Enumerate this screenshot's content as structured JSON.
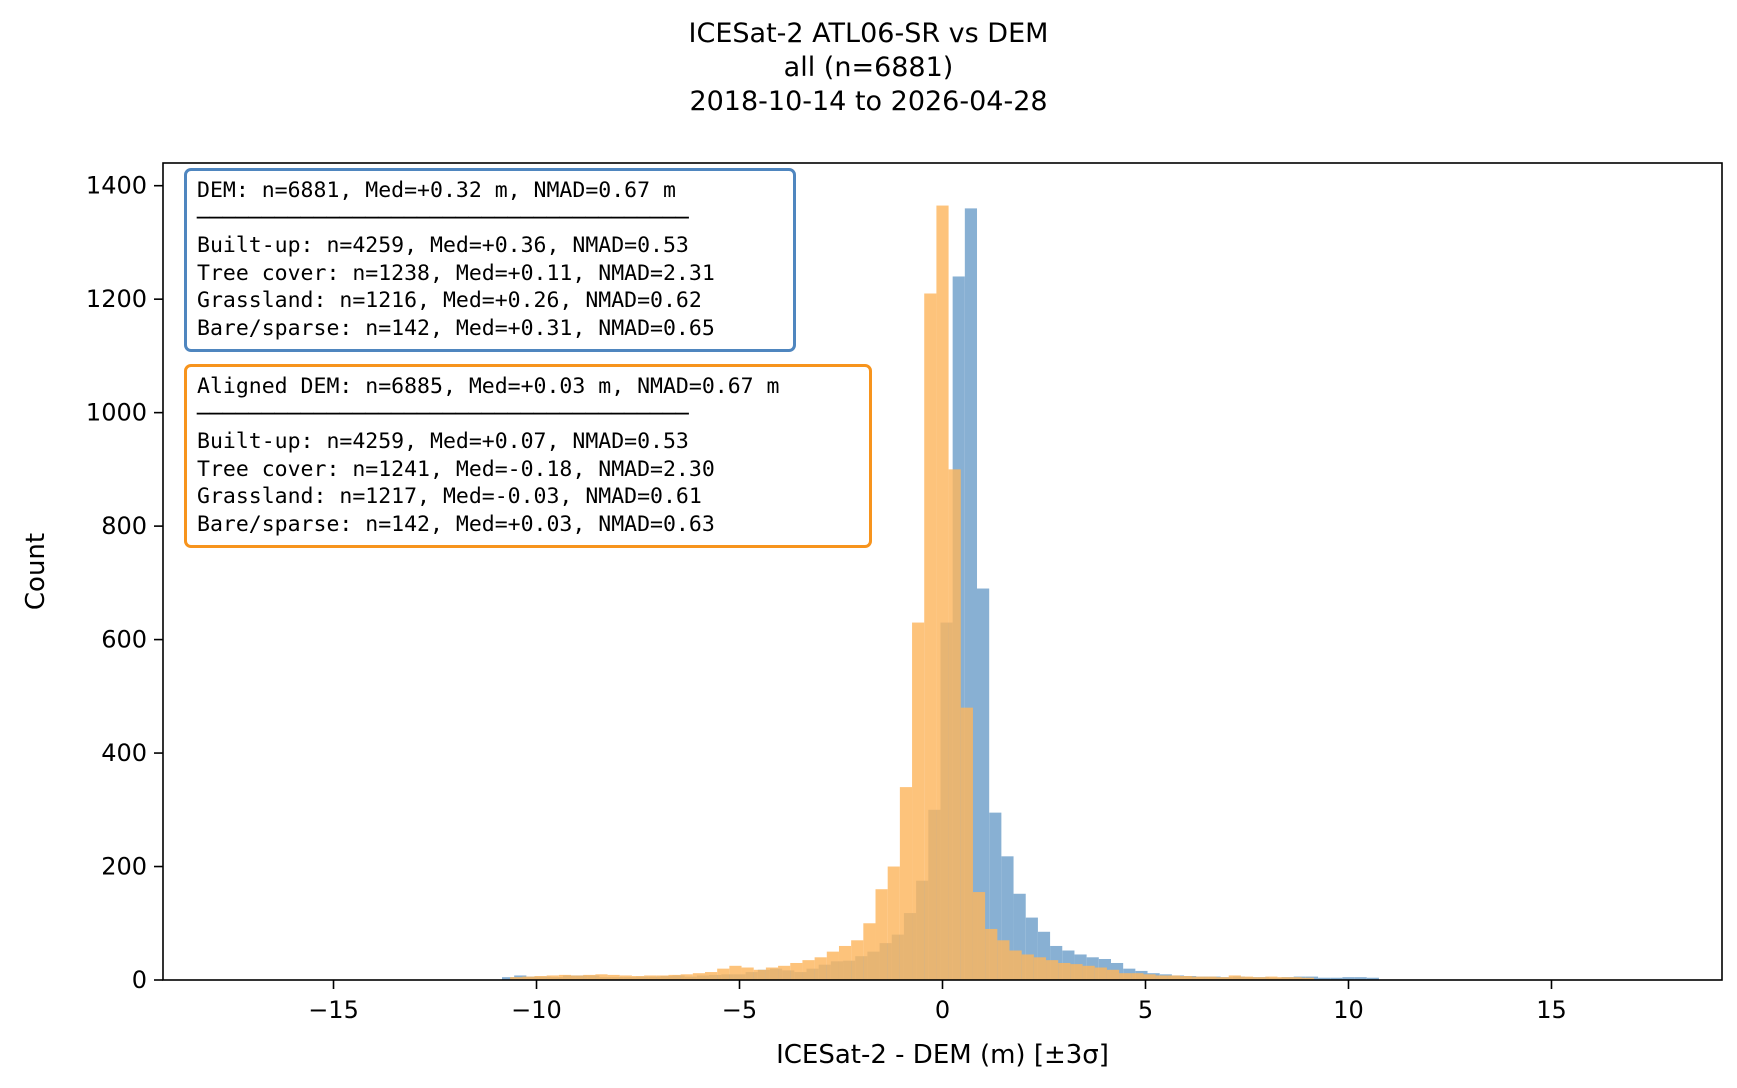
{
  "title": {
    "line1": "ICESat-2 ATL06-SR vs DEM",
    "line2": "all (n=6881)",
    "line3": "2018-10-14 to 2026-04-28"
  },
  "colors": {
    "dem": "#4f86bf",
    "aligned": "#f7941d",
    "dem_fill": "#88b0d3",
    "aligned_fill": "#fdb65e"
  },
  "box_dem": {
    "header": "DEM: n=6881, Med=+0.32 m, NMAD=0.67 m",
    "separator": "──────────────────────────────────────",
    "rows": [
      "Built-up: n=4259, Med=+0.36, NMAD=0.53",
      "Tree cover: n=1238, Med=+0.11, NMAD=2.31",
      "Grassland: n=1216, Med=+0.26, NMAD=0.62",
      "Bare/sparse: n=142, Med=+0.31, NMAD=0.65"
    ]
  },
  "box_aligned": {
    "header": "Aligned DEM: n=6885, Med=+0.03 m, NMAD=0.67 m",
    "separator": "──────────────────────────────────────",
    "rows": [
      "Built-up: n=4259, Med=+0.07, NMAD=0.53",
      "Tree cover: n=1241, Med=-0.18, NMAD=2.30",
      "Grassland: n=1217, Med=-0.03, NMAD=0.61",
      "Bare/sparse: n=142, Med=+0.03, NMAD=0.63"
    ]
  },
  "chart_data": {
    "type": "bar",
    "title": "ICESat-2 ATL06-SR vs DEM",
    "xlabel": "ICESat-2 - DEM (m) [±3σ]",
    "ylabel": "Count",
    "xlim": [
      -19.2,
      19.2
    ],
    "ylim": [
      0,
      1440
    ],
    "xticks": [
      -15,
      -10,
      -5,
      0,
      5,
      10,
      15
    ],
    "xtick_labels": [
      "−15",
      "−10",
      "−5",
      "0",
      "5",
      "10",
      "15"
    ],
    "yticks": [
      0,
      200,
      400,
      600,
      800,
      1000,
      1200,
      1400
    ],
    "ytick_labels": [
      "0",
      "200",
      "400",
      "600",
      "800",
      "1000",
      "1200",
      "1400"
    ],
    "grid": false,
    "series": [
      {
        "name": "DEM",
        "bin_start": -10.85,
        "bin_width": 0.3,
        "counts": [
          5,
          8,
          6,
          6,
          5,
          8,
          8,
          8,
          5,
          5,
          5,
          6,
          6,
          7,
          8,
          6,
          8,
          9,
          10,
          10,
          14,
          18,
          20,
          17,
          14,
          20,
          27,
          33,
          34,
          42,
          50,
          65,
          80,
          118,
          175,
          300,
          630,
          1240,
          1360,
          690,
          295,
          218,
          152,
          110,
          85,
          60,
          52,
          45,
          40,
          37,
          30,
          20,
          16,
          12,
          10,
          8,
          7,
          6,
          6,
          5,
          6,
          5,
          5,
          4,
          5,
          6,
          6,
          4,
          4,
          5,
          5,
          4
        ]
      },
      {
        "name": "Aligned DEM",
        "bin_start": -10.65,
        "bin_width": 0.3,
        "counts": [
          5,
          6,
          7,
          8,
          9,
          8,
          9,
          10,
          9,
          8,
          7,
          8,
          8,
          9,
          10,
          12,
          14,
          20,
          25,
          22,
          18,
          22,
          25,
          30,
          35,
          40,
          50,
          60,
          70,
          100,
          160,
          200,
          340,
          630,
          1210,
          1365,
          900,
          480,
          155,
          90,
          70,
          52,
          45,
          40,
          35,
          30,
          28,
          25,
          22,
          18,
          12,
          12,
          10,
          8,
          8,
          7,
          6,
          6,
          5,
          8,
          6,
          5,
          6,
          5,
          5,
          4
        ]
      }
    ]
  }
}
